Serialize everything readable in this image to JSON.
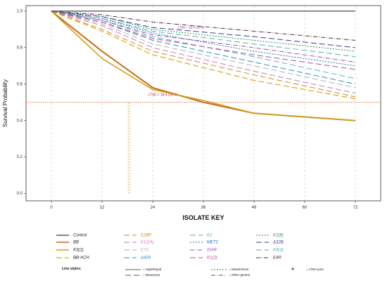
{
  "chart_data": {
    "type": "line",
    "xlabel": "ISOLATE KEY",
    "ylabel": "Survival Probability",
    "x": [
      0,
      12,
      24,
      36,
      48,
      60,
      72
    ],
    "x_ticks": [
      "0",
      "12",
      "24",
      "36",
      "48",
      "60",
      "72"
    ],
    "y_ticks": [
      "0.0",
      "0.2",
      "0.4",
      "0.6",
      "0.8",
      "1.0"
    ],
    "xlim": [
      -6,
      78
    ],
    "ylim": [
      -0.04,
      1.03
    ],
    "grid": "dashed vertical at x ticks",
    "lt50_line": 0.5,
    "lt50_label": "LT50 = 18.4 (18.4)",
    "upper_label": "LT50 = 18.4 (18.4)",
    "lt50_x": [
      18.2,
      18.6
    ],
    "series": [
      {
        "name": "Control",
        "color": "#3a3a3a",
        "dash": "solid",
        "width": 1.2,
        "points": [
          [
            0,
            1.0
          ],
          [
            72,
            1.0
          ]
        ]
      },
      {
        "name": "BB",
        "color": "#c76a1a",
        "dash": "solid",
        "width": 2.0,
        "points": [
          [
            0,
            1.0
          ],
          [
            12,
            0.78
          ],
          [
            24,
            0.58
          ],
          [
            36,
            0.5
          ],
          [
            48,
            0.44
          ],
          [
            72,
            0.4
          ]
        ]
      },
      {
        "name": "K3(1)",
        "color": "#d4a017",
        "dash": "solid",
        "width": 1.6,
        "points": [
          [
            0,
            1.0
          ],
          [
            12,
            0.74
          ],
          [
            24,
            0.57
          ],
          [
            36,
            0.51
          ],
          [
            48,
            0.44
          ],
          [
            72,
            0.4
          ]
        ]
      },
      {
        "name": "BB-ACH",
        "color": "#e3a21a",
        "dash": "8,4",
        "width": 1.2,
        "points": [
          [
            0,
            1.0
          ],
          [
            12,
            0.89
          ],
          [
            24,
            0.76
          ],
          [
            48,
            0.62
          ],
          [
            72,
            0.52
          ]
        ]
      },
      {
        "name": "E28R",
        "color": "#d08a1c",
        "dash": "8,4",
        "width": 1.0,
        "points": [
          [
            0,
            1.0
          ],
          [
            12,
            0.9
          ],
          [
            24,
            0.78
          ],
          [
            48,
            0.65
          ],
          [
            72,
            0.53
          ]
        ]
      },
      {
        "name": "K1(1A)",
        "color": "#c77ac2",
        "dash": "8,4",
        "width": 1.0,
        "points": [
          [
            0,
            1.0
          ],
          [
            12,
            0.92
          ],
          [
            24,
            0.8
          ],
          [
            48,
            0.67
          ],
          [
            72,
            0.55
          ]
        ]
      },
      {
        "name": "E73",
        "color": "#b0b0b0",
        "dash": "8,4",
        "width": 1.0,
        "points": [
          [
            0,
            1.0
          ],
          [
            12,
            0.93
          ],
          [
            24,
            0.82
          ],
          [
            48,
            0.7
          ],
          [
            72,
            0.58
          ]
        ]
      },
      {
        "name": "Δ400",
        "color": "#2a8fb5",
        "dash": "8,4",
        "width": 1.0,
        "points": [
          [
            0,
            1.0
          ],
          [
            12,
            0.94
          ],
          [
            24,
            0.84
          ],
          [
            48,
            0.72
          ],
          [
            72,
            0.6
          ]
        ]
      },
      {
        "name": "K2",
        "color": "#5aa9d6",
        "dash": "8,4",
        "width": 1.0,
        "points": [
          [
            0,
            1.0
          ],
          [
            12,
            0.95
          ],
          [
            24,
            0.86
          ],
          [
            48,
            0.75
          ],
          [
            72,
            0.63
          ]
        ]
      },
      {
        "name": "MET2",
        "color": "#1f6fb0",
        "dash": "2,2",
        "width": 1.0,
        "points": [
          [
            0,
            1.0
          ],
          [
            12,
            0.96
          ],
          [
            24,
            0.88
          ],
          [
            48,
            0.78
          ],
          [
            72,
            0.7
          ]
        ]
      },
      {
        "name": "ISAR",
        "color": "#9b4fa8",
        "dash": "6,2,1,2",
        "width": 1.0,
        "points": [
          [
            0,
            1.0
          ],
          [
            12,
            0.95
          ],
          [
            24,
            0.87
          ],
          [
            48,
            0.8
          ],
          [
            72,
            0.72
          ]
        ]
      },
      {
        "name": "K1(2)",
        "color": "#b05090",
        "dash": "8,4",
        "width": 1.0,
        "points": [
          [
            0,
            1.0
          ],
          [
            12,
            0.94
          ],
          [
            24,
            0.85
          ],
          [
            48,
            0.76
          ],
          [
            72,
            0.68
          ]
        ]
      },
      {
        "name": "K1(8)",
        "color": "#2e8b57",
        "dash": "2,2",
        "width": 1.0,
        "points": [
          [
            0,
            1.0
          ],
          [
            12,
            0.97
          ],
          [
            24,
            0.9
          ],
          [
            48,
            0.84
          ],
          [
            72,
            0.78
          ]
        ]
      },
      {
        "name": "Δ32B",
        "color": "#3b3b8f",
        "dash": "8,4",
        "width": 1.0,
        "points": [
          [
            0,
            1.0
          ],
          [
            12,
            0.97
          ],
          [
            24,
            0.91
          ],
          [
            48,
            0.86
          ],
          [
            72,
            0.8
          ]
        ]
      },
      {
        "name": "K4(3)",
        "color": "#4fb3a9",
        "dash": "8,4",
        "width": 1.0,
        "points": [
          [
            0,
            1.0
          ],
          [
            12,
            0.96
          ],
          [
            24,
            0.89
          ],
          [
            48,
            0.82
          ],
          [
            72,
            0.75
          ]
        ]
      },
      {
        "name": "E4R",
        "color": "#5a2a2a",
        "dash": "6,2,1,2",
        "width": 1.0,
        "points": [
          [
            0,
            1.0
          ],
          [
            12,
            0.98
          ],
          [
            24,
            0.94
          ],
          [
            48,
            0.89
          ],
          [
            72,
            0.84
          ]
        ]
      }
    ],
    "legend_columns": [
      [
        "Control",
        "BB",
        "K3(1)",
        "BB-ACH"
      ],
      [
        "E28R",
        "K1(1A)",
        "E73",
        "Δ400"
      ],
      [
        "K2",
        "MET2",
        "ISAR",
        "K1(2)"
      ],
      [
        "K1(8)",
        "Δ32B",
        "K4(3)",
        "E4R"
      ]
    ],
    "line_styles_title": "Line styles:",
    "line_styles": [
      {
        "label": "= High/Rapid",
        "dash": "solid"
      },
      {
        "label": "= Beauveria",
        "dash": "8,4"
      },
      {
        "label": "= Metarhizium",
        "dash": "2,2"
      },
      {
        "label": "= Other genera",
        "dash": "6,2,1,2"
      },
      {
        "label": "= LT50 point",
        "marker": "star"
      }
    ]
  }
}
